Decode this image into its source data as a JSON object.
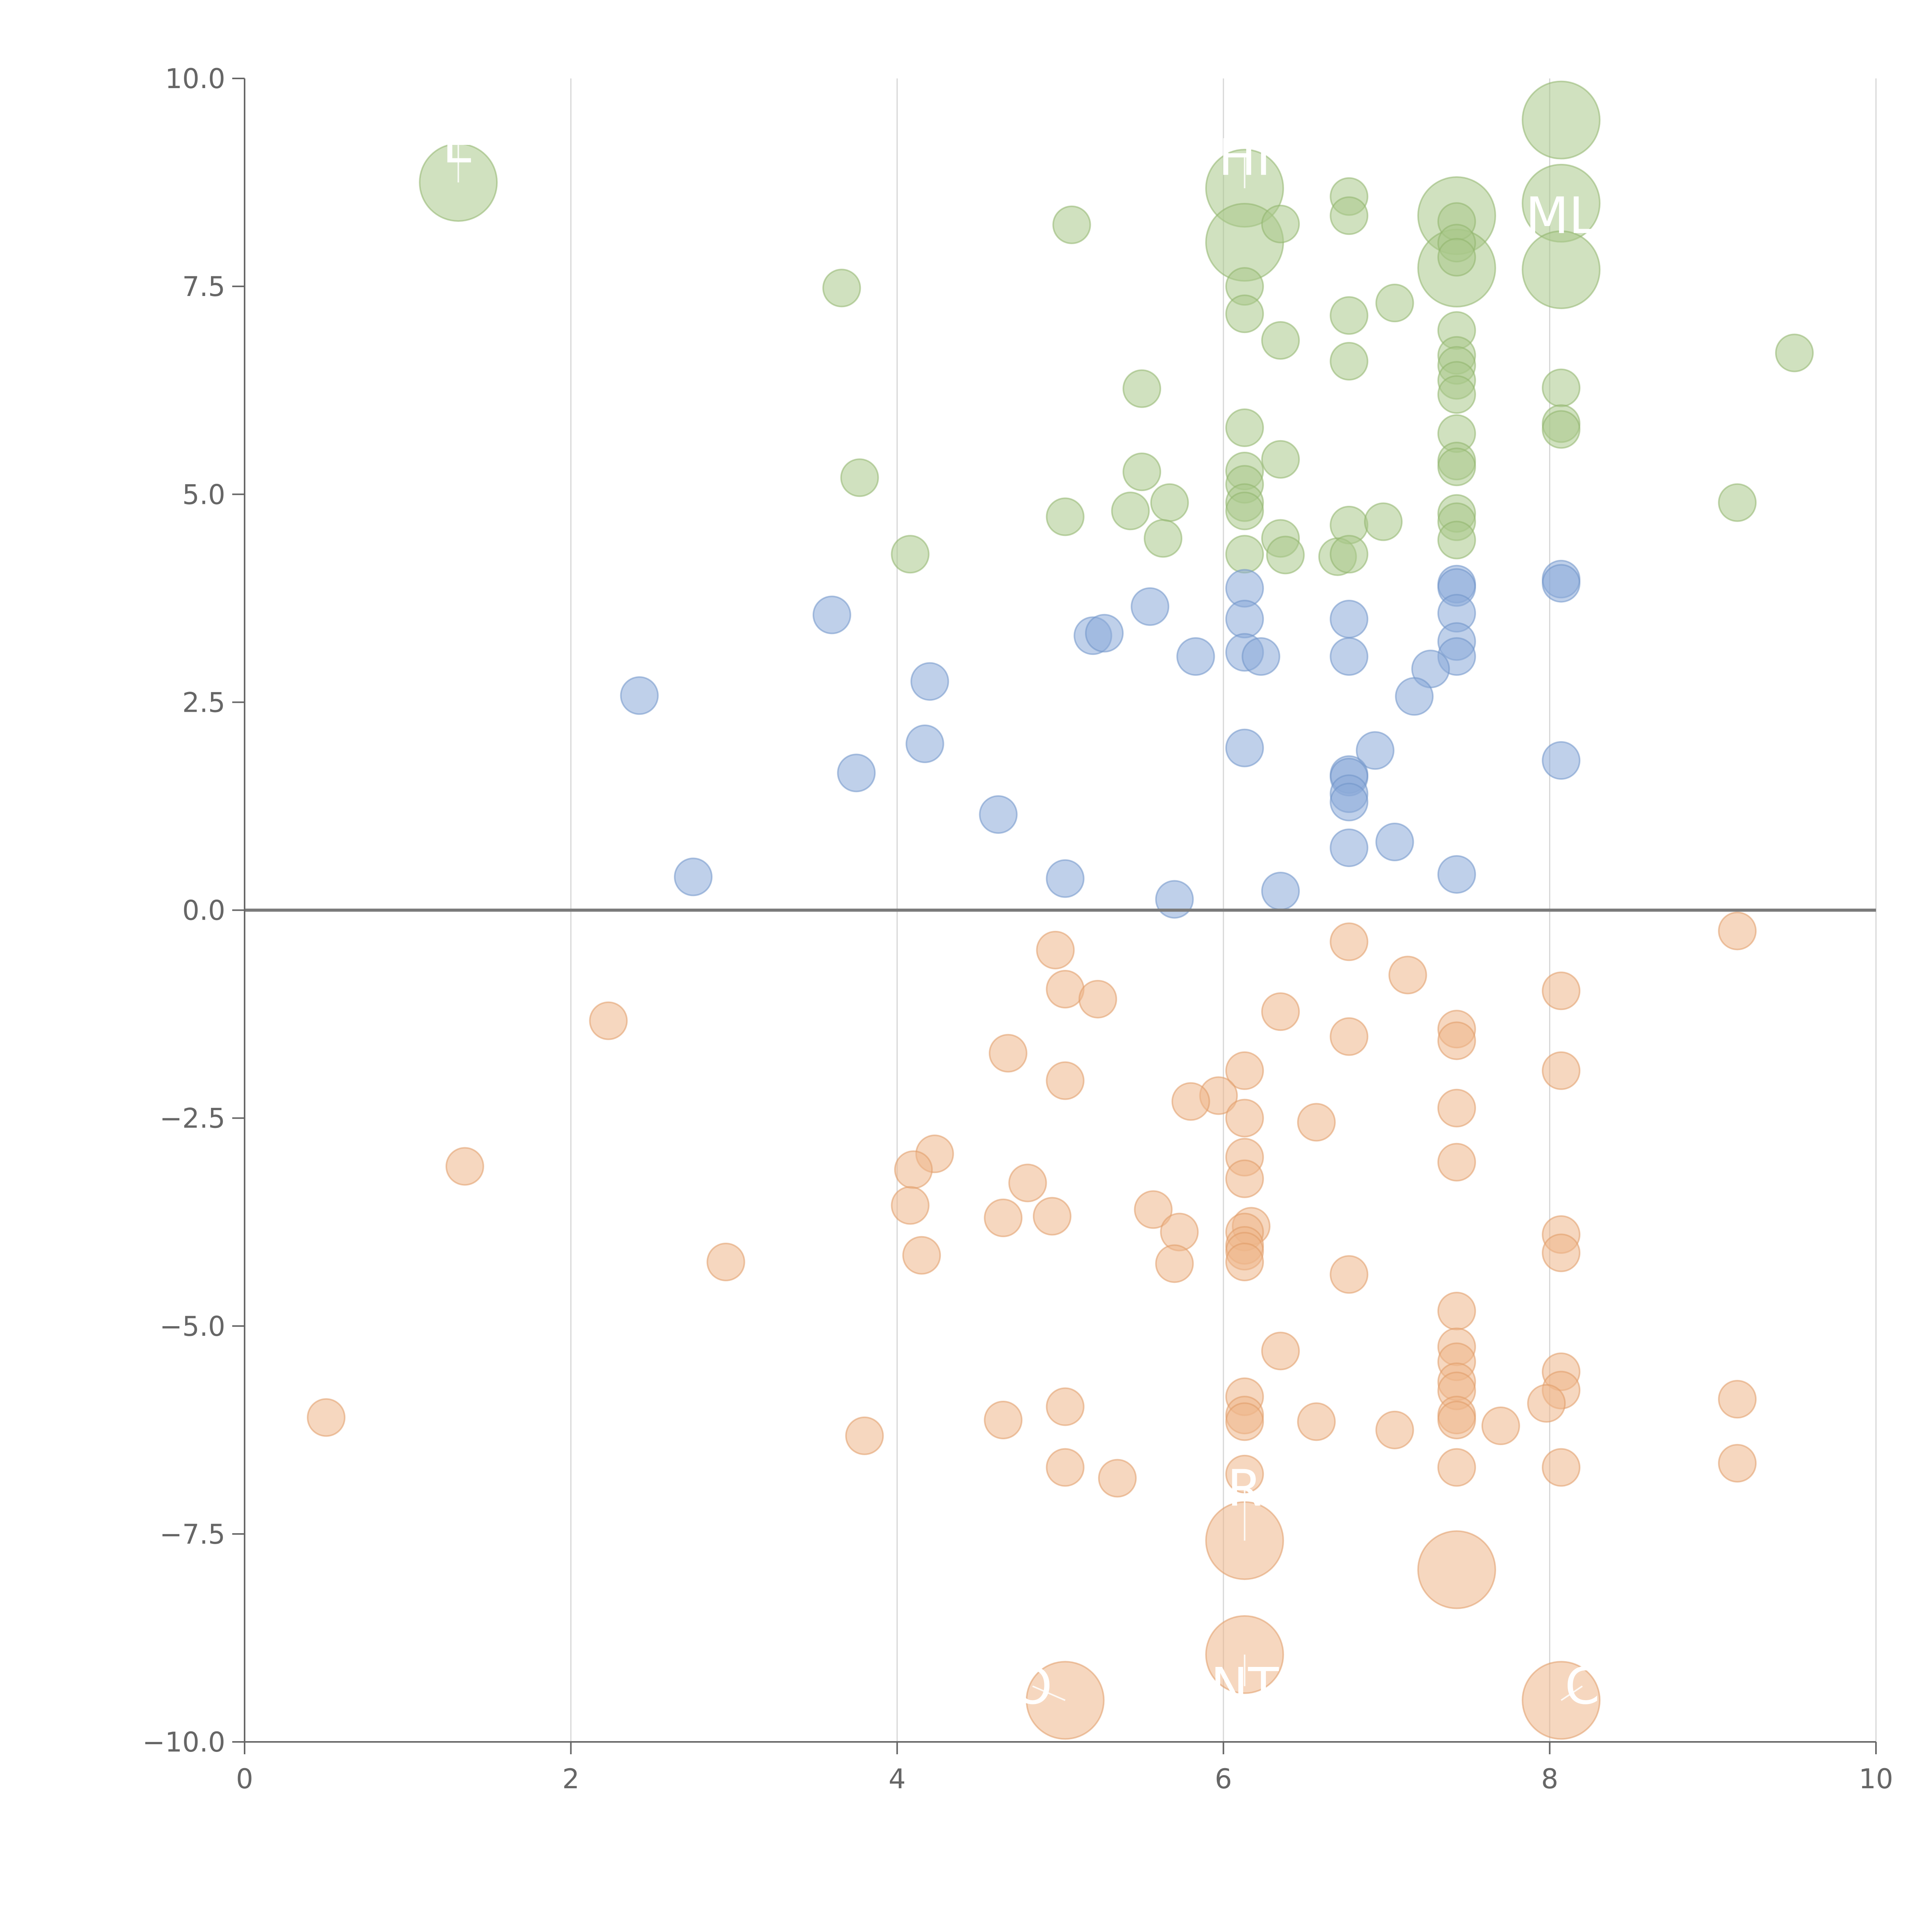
{
  "chart_data": {
    "type": "scatter",
    "title": "",
    "xlabel": "",
    "ylabel": "",
    "xlim": [
      0,
      10
    ],
    "ylim": [
      -10,
      10
    ],
    "x_ticks": [
      0,
      2,
      4,
      6,
      8,
      10
    ],
    "y_ticks": [
      10,
      7.5,
      5,
      2.5,
      0,
      -2.5,
      -5,
      -7.5,
      -10
    ],
    "x_tick_labels": [
      "0",
      "2",
      "4",
      "6",
      "8",
      "10"
    ],
    "y_tick_labels": [
      "10.0",
      "7.5",
      "5.0",
      "2.5",
      "0.0",
      "−2.5",
      "−5.0",
      "−7.5",
      "−10.0"
    ],
    "grid": "vertical gridlines at x ticks",
    "reference_line_y": 0,
    "bubble_sizes": "small points uniform; a few large bubbles marked by labels",
    "series": [
      {
        "color": "#a9c88a",
        "stroke": "#8fb56c",
        "points": [
          [
            1.31,
            8.75,
            2
          ],
          [
            3.66,
            7.48,
            1
          ],
          [
            6.13,
            8.68,
            2
          ],
          [
            6.13,
            8.03,
            2
          ],
          [
            7.43,
            8.35,
            2
          ],
          [
            7.43,
            7.72,
            2
          ],
          [
            8.07,
            9.5,
            2
          ],
          [
            8.07,
            8.5,
            2
          ],
          [
            8.07,
            7.7,
            2
          ],
          [
            5.07,
            8.24,
            1
          ],
          [
            6.77,
            8.58,
            1
          ],
          [
            6.77,
            8.35,
            1
          ],
          [
            6.35,
            8.25,
            1
          ],
          [
            7.43,
            8.28,
            1
          ],
          [
            7.43,
            8.02,
            1
          ],
          [
            7.43,
            7.85,
            1
          ],
          [
            6.13,
            7.5,
            1
          ],
          [
            6.13,
            7.17,
            1
          ],
          [
            6.77,
            7.15,
            1
          ],
          [
            7.05,
            7.3,
            1
          ],
          [
            6.35,
            6.85,
            1
          ],
          [
            6.77,
            6.6,
            1
          ],
          [
            7.43,
            6.97,
            1
          ],
          [
            7.43,
            6.67,
            1
          ],
          [
            7.43,
            6.55,
            1
          ],
          [
            7.43,
            6.37,
            1
          ],
          [
            7.43,
            6.2,
            1
          ],
          [
            8.07,
            6.28,
            1
          ],
          [
            9.5,
            6.7,
            1
          ],
          [
            5.5,
            6.27,
            1
          ],
          [
            6.13,
            5.8,
            1
          ],
          [
            8.07,
            5.85,
            1
          ],
          [
            8.07,
            5.78,
            1
          ],
          [
            7.43,
            5.73,
            1
          ],
          [
            3.77,
            5.2,
            1
          ],
          [
            5.5,
            5.27,
            1
          ],
          [
            6.13,
            5.28,
            1
          ],
          [
            6.13,
            5.12,
            1
          ],
          [
            6.35,
            5.42,
            1
          ],
          [
            7.43,
            5.4,
            1
          ],
          [
            7.43,
            5.33,
            1
          ],
          [
            6.13,
            4.9,
            1
          ],
          [
            6.13,
            4.8,
            1
          ],
          [
            5.67,
            4.9,
            1
          ],
          [
            5.43,
            4.8,
            1
          ],
          [
            5.03,
            4.73,
            1
          ],
          [
            7.43,
            4.77,
            1
          ],
          [
            7.43,
            4.67,
            1
          ],
          [
            6.77,
            4.63,
            1
          ],
          [
            6.98,
            4.67,
            1
          ],
          [
            9.15,
            4.9,
            1
          ],
          [
            5.63,
            4.47,
            1
          ],
          [
            6.35,
            4.47,
            1
          ],
          [
            7.43,
            4.45,
            1
          ],
          [
            4.08,
            4.28,
            1
          ],
          [
            6.13,
            4.28,
            1
          ],
          [
            6.38,
            4.27,
            1
          ],
          [
            6.7,
            4.25,
            1
          ],
          [
            6.77,
            4.28,
            1
          ]
        ]
      },
      {
        "color": "#8aaad8",
        "stroke": "#6f94c8",
        "points": [
          [
            8.07,
            3.98,
            1
          ],
          [
            8.07,
            3.93,
            1
          ],
          [
            7.43,
            3.92,
            1
          ],
          [
            7.43,
            3.88,
            1
          ],
          [
            6.13,
            3.87,
            1
          ],
          [
            5.55,
            3.65,
            1
          ],
          [
            3.6,
            3.55,
            1
          ],
          [
            7.43,
            3.57,
            1
          ],
          [
            6.13,
            3.5,
            1
          ],
          [
            6.77,
            3.5,
            1
          ],
          [
            5.2,
            3.3,
            1
          ],
          [
            5.27,
            3.33,
            1
          ],
          [
            7.43,
            3.23,
            1
          ],
          [
            6.13,
            3.1,
            1
          ],
          [
            6.23,
            3.05,
            1
          ],
          [
            5.83,
            3.05,
            1
          ],
          [
            6.77,
            3.05,
            1
          ],
          [
            7.43,
            3.05,
            1
          ],
          [
            7.27,
            2.9,
            1
          ],
          [
            4.2,
            2.75,
            1
          ],
          [
            2.42,
            2.58,
            1
          ],
          [
            7.17,
            2.57,
            1
          ],
          [
            4.17,
            2.0,
            1
          ],
          [
            6.13,
            1.95,
            1
          ],
          [
            6.93,
            1.92,
            1
          ],
          [
            8.07,
            1.8,
            1
          ],
          [
            3.75,
            1.65,
            1
          ],
          [
            6.77,
            1.63,
            1
          ],
          [
            6.77,
            1.6,
            1
          ],
          [
            6.77,
            1.4,
            1
          ],
          [
            6.77,
            1.3,
            1
          ],
          [
            4.62,
            1.15,
            1
          ],
          [
            7.05,
            0.82,
            1
          ],
          [
            6.77,
            0.75,
            1
          ],
          [
            7.43,
            0.43,
            1
          ],
          [
            2.75,
            0.4,
            1
          ],
          [
            5.03,
            0.38,
            1
          ],
          [
            6.35,
            0.23,
            1
          ],
          [
            5.7,
            0.13,
            1
          ]
        ]
      },
      {
        "color": "#eeb68a",
        "stroke": "#e09a66",
        "points": [
          [
            9.15,
            -0.25,
            1
          ],
          [
            6.77,
            -0.38,
            1
          ],
          [
            4.97,
            -0.48,
            1
          ],
          [
            7.13,
            -0.78,
            1
          ],
          [
            5.03,
            -0.95,
            1
          ],
          [
            8.07,
            -0.97,
            1
          ],
          [
            5.23,
            -1.07,
            1
          ],
          [
            6.35,
            -1.22,
            1
          ],
          [
            2.23,
            -1.33,
            1
          ],
          [
            7.43,
            -1.43,
            1
          ],
          [
            6.77,
            -1.52,
            1
          ],
          [
            7.43,
            -1.57,
            1
          ],
          [
            4.68,
            -1.72,
            1
          ],
          [
            6.13,
            -1.93,
            1
          ],
          [
            8.07,
            -1.93,
            1
          ],
          [
            5.03,
            -2.05,
            1
          ],
          [
            5.97,
            -2.23,
            1
          ],
          [
            5.8,
            -2.3,
            1
          ],
          [
            7.43,
            -2.38,
            1
          ],
          [
            6.13,
            -2.5,
            1
          ],
          [
            6.57,
            -2.55,
            1
          ],
          [
            4.23,
            -2.93,
            1
          ],
          [
            6.13,
            -2.97,
            1
          ],
          [
            7.43,
            -3.03,
            1
          ],
          [
            1.35,
            -3.08,
            1
          ],
          [
            4.1,
            -3.12,
            1
          ],
          [
            6.13,
            -3.23,
            1
          ],
          [
            4.8,
            -3.28,
            1
          ],
          [
            4.08,
            -3.55,
            1
          ],
          [
            5.57,
            -3.6,
            1
          ],
          [
            4.65,
            -3.7,
            1
          ],
          [
            4.95,
            -3.68,
            1
          ],
          [
            6.17,
            -3.8,
            1
          ],
          [
            6.13,
            -3.87,
            1
          ],
          [
            5.73,
            -3.87,
            1
          ],
          [
            8.07,
            -3.9,
            1
          ],
          [
            6.13,
            -4.03,
            1
          ],
          [
            6.13,
            -4.1,
            1
          ],
          [
            8.07,
            -4.12,
            1
          ],
          [
            4.15,
            -4.15,
            1
          ],
          [
            6.13,
            -4.23,
            1
          ],
          [
            2.95,
            -4.23,
            1
          ],
          [
            5.7,
            -4.25,
            1
          ],
          [
            6.77,
            -4.38,
            1
          ],
          [
            7.43,
            -4.82,
            1
          ],
          [
            7.43,
            -5.25,
            1
          ],
          [
            6.35,
            -5.3,
            1
          ],
          [
            7.43,
            -5.43,
            1
          ],
          [
            8.07,
            -5.55,
            1
          ],
          [
            7.43,
            -5.67,
            1
          ],
          [
            7.43,
            -5.78,
            1
          ],
          [
            8.07,
            -5.77,
            1
          ],
          [
            6.13,
            -5.85,
            1
          ],
          [
            9.15,
            -5.88,
            1
          ],
          [
            7.98,
            -5.93,
            1
          ],
          [
            5.03,
            -5.97,
            1
          ],
          [
            6.13,
            -6.07,
            1
          ],
          [
            7.43,
            -6.07,
            1
          ],
          [
            0.5,
            -6.1,
            1
          ],
          [
            7.43,
            -6.13,
            1
          ],
          [
            4.65,
            -6.13,
            1
          ],
          [
            6.13,
            -6.15,
            1
          ],
          [
            6.57,
            -6.15,
            1
          ],
          [
            7.7,
            -6.2,
            1
          ],
          [
            7.05,
            -6.25,
            1
          ],
          [
            3.8,
            -6.32,
            1
          ],
          [
            9.15,
            -6.65,
            1
          ],
          [
            5.03,
            -6.7,
            1
          ],
          [
            7.43,
            -6.7,
            1
          ],
          [
            8.07,
            -6.7,
            1
          ],
          [
            6.13,
            -6.78,
            1
          ],
          [
            5.35,
            -6.83,
            1
          ],
          [
            6.13,
            -7.58,
            2
          ],
          [
            7.43,
            -7.93,
            2
          ],
          [
            6.13,
            -8.95,
            2
          ],
          [
            5.03,
            -9.5,
            2
          ],
          [
            8.07,
            -9.5,
            2
          ]
        ]
      }
    ],
    "annotations": [
      {
        "text": "E",
        "x": 1.31,
        "y": 9.2,
        "ax": 1.31,
        "ay": 8.75
      },
      {
        "text": "HI",
        "x": 6.13,
        "y": 9.05,
        "ax": 6.13,
        "ay": 8.68
      },
      {
        "text": "ML",
        "x": 8.07,
        "y": 8.35,
        "ax": 8.07,
        "ay": 8.5
      },
      {
        "text": "R",
        "x": 6.13,
        "y": -6.95,
        "ax": 6.13,
        "ay": -7.58
      },
      {
        "text": "NT",
        "x": 6.13,
        "y": -9.33,
        "ax": 6.13,
        "ay": -8.95
      },
      {
        "text": "O",
        "x": 4.83,
        "y": -9.33,
        "ax": 5.03,
        "ay": -9.5
      },
      {
        "text": "C",
        "x": 8.2,
        "y": -9.33,
        "ax": 8.07,
        "ay": -9.5
      }
    ]
  }
}
